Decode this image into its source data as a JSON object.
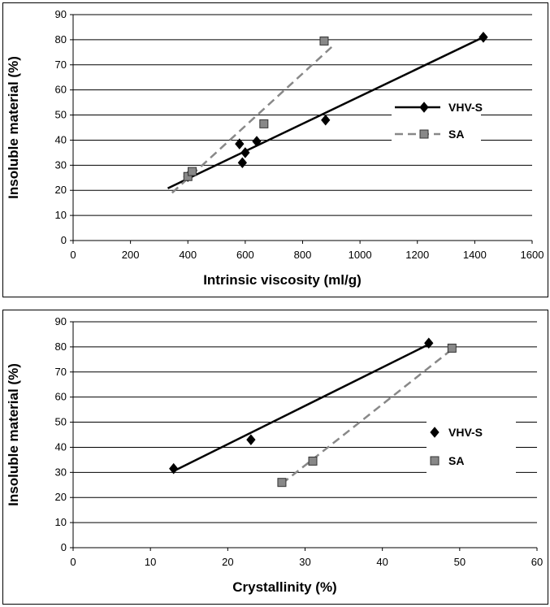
{
  "chart_data": [
    {
      "type": "scatter",
      "title": "",
      "xlabel": "Intrinsic viscosity (ml/g)",
      "ylabel": "Insoluble material (%)",
      "xlim": [
        0,
        1600
      ],
      "ylim": [
        0,
        90
      ],
      "xticks": [
        "0",
        "200",
        "400",
        "600",
        "800",
        "1000",
        "1200",
        "1400",
        "1600"
      ],
      "yticks": [
        "0",
        "10",
        "20",
        "30",
        "40",
        "50",
        "60",
        "70",
        "80",
        "90"
      ],
      "grid": "horizontal",
      "legend_position": "right",
      "series": [
        {
          "name": "VHV-S",
          "marker": "diamond",
          "color": "#000000",
          "trendline": "solid",
          "trend_x": [
            330,
            1430
          ],
          "trend_y": [
            20.8,
            81
          ],
          "points": [
            [
              400,
              25.5
            ],
            [
              580,
              38.5
            ],
            [
              590,
              31
            ],
            [
              600,
              35
            ],
            [
              640,
              39.5
            ],
            [
              880,
              48
            ],
            [
              1430,
              81
            ]
          ]
        },
        {
          "name": "SA",
          "marker": "square",
          "color": "#888888",
          "trendline": "dashed",
          "trend_x": [
            345,
            905
          ],
          "trend_y": [
            19,
            77.5
          ],
          "points": [
            [
              400,
              25.5
            ],
            [
              415,
              27.5
            ],
            [
              665,
              46.5
            ],
            [
              875,
              79.5
            ]
          ]
        }
      ]
    },
    {
      "type": "scatter",
      "title": "",
      "xlabel": "Crystallinity (%)",
      "ylabel": "Insoluble material (%)",
      "xlim": [
        0,
        60
      ],
      "ylim": [
        0,
        90
      ],
      "xticks": [
        "0",
        "10",
        "20",
        "30",
        "40",
        "50",
        "60"
      ],
      "yticks": [
        "0",
        "10",
        "20",
        "30",
        "40",
        "50",
        "60",
        "70",
        "80",
        "90"
      ],
      "grid": "horizontal",
      "legend_position": "right",
      "series": [
        {
          "name": "VHV-S",
          "marker": "diamond",
          "color": "#000000",
          "trendline": "solid",
          "trend_x": [
            13,
            46
          ],
          "trend_y": [
            30.5,
            81
          ],
          "points": [
            [
              13,
              31.5
            ],
            [
              23,
              43
            ],
            [
              46,
              81.5
            ]
          ]
        },
        {
          "name": "SA",
          "marker": "square",
          "color": "#888888",
          "trendline": "dashed",
          "trend_x": [
            27,
            49
          ],
          "trend_y": [
            25.5,
            79
          ],
          "points": [
            [
              27,
              26
            ],
            [
              31,
              34.5
            ],
            [
              49,
              79.5
            ]
          ]
        }
      ]
    }
  ]
}
